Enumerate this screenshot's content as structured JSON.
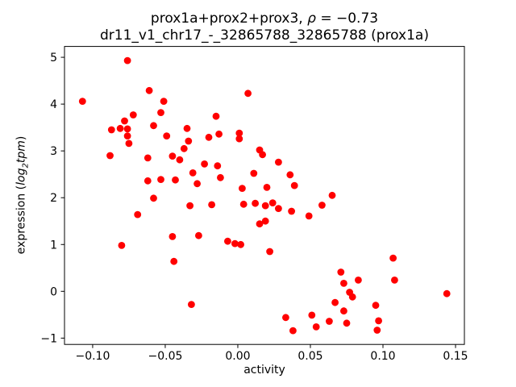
{
  "title": {
    "line1_prefix": "prox1a+prox2+prox3, ",
    "rho": "ρ",
    "line1_suffix": " = −0.73",
    "line2": "dr11_v1_chr17_-_32865788_32865788 (prox1a)"
  },
  "axes": {
    "xlabel": "activity",
    "ylabel_parts": {
      "prefix": "expression (",
      "log": "log",
      "sub": "2",
      "tpm": "tpm",
      "suffix": ")"
    }
  },
  "chart_data": {
    "type": "scatter",
    "title": "prox1a+prox2+prox3, ρ = −0.73",
    "subtitle": "dr11_v1_chr17_-_32865788_32865788 (prox1a)",
    "correlation_rho": -0.73,
    "xlabel": "activity",
    "ylabel": "expression (log2 tpm)",
    "marker_color": "#ff0000",
    "grid": false,
    "legend": "none",
    "xlim": [
      -0.1194,
      0.1561
    ],
    "ylim": [
      -1.135,
      5.232
    ],
    "x_ticks": [
      {
        "value": -0.1,
        "label": "−0.10"
      },
      {
        "value": -0.05,
        "label": "−0.05"
      },
      {
        "value": 0.0,
        "label": "0.00"
      },
      {
        "value": 0.05,
        "label": "0.05"
      },
      {
        "value": 0.1,
        "label": "0.10"
      },
      {
        "value": 0.15,
        "label": "0.15"
      }
    ],
    "y_ticks": [
      {
        "value": -1,
        "label": "−1"
      },
      {
        "value": 0,
        "label": "0"
      },
      {
        "value": 1,
        "label": "1"
      },
      {
        "value": 2,
        "label": "2"
      },
      {
        "value": 3,
        "label": "3"
      },
      {
        "value": 4,
        "label": "4"
      },
      {
        "value": 5,
        "label": "5"
      }
    ],
    "points": [
      [
        -0.076,
        4.93
      ],
      [
        -0.061,
        4.29
      ],
      [
        -0.107,
        4.06
      ],
      [
        -0.051,
        4.06
      ],
      [
        0.007,
        4.23
      ],
      [
        -0.015,
        3.74
      ],
      [
        -0.013,
        3.36
      ],
      [
        0.001,
        3.38
      ],
      [
        0.001,
        3.26
      ],
      [
        -0.02,
        3.29
      ],
      [
        -0.053,
        3.82
      ],
      [
        -0.072,
        3.77
      ],
      [
        -0.078,
        3.64
      ],
      [
        -0.058,
        3.54
      ],
      [
        -0.035,
        3.48
      ],
      [
        -0.087,
        3.45
      ],
      [
        -0.081,
        3.48
      ],
      [
        -0.076,
        3.47
      ],
      [
        -0.076,
        3.32
      ],
      [
        -0.075,
        3.16
      ],
      [
        -0.049,
        3.32
      ],
      [
        -0.034,
        3.21
      ],
      [
        -0.037,
        3.05
      ],
      [
        -0.088,
        2.9
      ],
      [
        -0.062,
        2.85
      ],
      [
        -0.045,
        2.89
      ],
      [
        -0.04,
        2.81
      ],
      [
        -0.023,
        2.72
      ],
      [
        -0.031,
        2.53
      ],
      [
        -0.028,
        2.3
      ],
      [
        -0.062,
        2.36
      ],
      [
        -0.053,
        2.39
      ],
      [
        -0.043,
        2.38
      ],
      [
        -0.058,
        1.99
      ],
      [
        -0.033,
        1.83
      ],
      [
        -0.069,
        1.64
      ],
      [
        -0.045,
        1.17
      ],
      [
        -0.027,
        1.19
      ],
      [
        -0.08,
        0.98
      ],
      [
        -0.044,
        0.64
      ],
      [
        -0.032,
        -0.28
      ],
      [
        0.015,
        3.02
      ],
      [
        0.017,
        2.92
      ],
      [
        0.028,
        2.76
      ],
      [
        -0.014,
        2.68
      ],
      [
        0.011,
        2.52
      ],
      [
        -0.012,
        2.43
      ],
      [
        0.036,
        2.49
      ],
      [
        0.039,
        2.26
      ],
      [
        0.003,
        2.2
      ],
      [
        0.02,
        2.22
      ],
      [
        0.065,
        2.05
      ],
      [
        -0.018,
        1.85
      ],
      [
        0.004,
        1.86
      ],
      [
        0.012,
        1.88
      ],
      [
        0.019,
        1.83
      ],
      [
        0.024,
        1.89
      ],
      [
        0.028,
        1.77
      ],
      [
        0.058,
        1.84
      ],
      [
        0.037,
        1.71
      ],
      [
        0.049,
        1.61
      ],
      [
        0.015,
        1.44
      ],
      [
        0.019,
        1.5
      ],
      [
        -0.007,
        1.07
      ],
      [
        -0.002,
        1.02
      ],
      [
        0.002,
        1.0
      ],
      [
        0.022,
        0.85
      ],
      [
        0.071,
        0.41
      ],
      [
        0.073,
        0.17
      ],
      [
        0.083,
        0.24
      ],
      [
        0.077,
        -0.02
      ],
      [
        0.079,
        -0.12
      ],
      [
        0.067,
        -0.24
      ],
      [
        0.073,
        -0.42
      ],
      [
        0.033,
        -0.56
      ],
      [
        0.051,
        -0.51
      ],
      [
        0.054,
        -0.76
      ],
      [
        0.063,
        -0.64
      ],
      [
        0.038,
        -0.84
      ],
      [
        0.075,
        -0.68
      ],
      [
        0.107,
        0.71
      ],
      [
        0.108,
        0.24
      ],
      [
        0.144,
        -0.05
      ],
      [
        0.095,
        -0.3
      ],
      [
        0.097,
        -0.63
      ],
      [
        0.096,
        -0.83
      ]
    ]
  }
}
